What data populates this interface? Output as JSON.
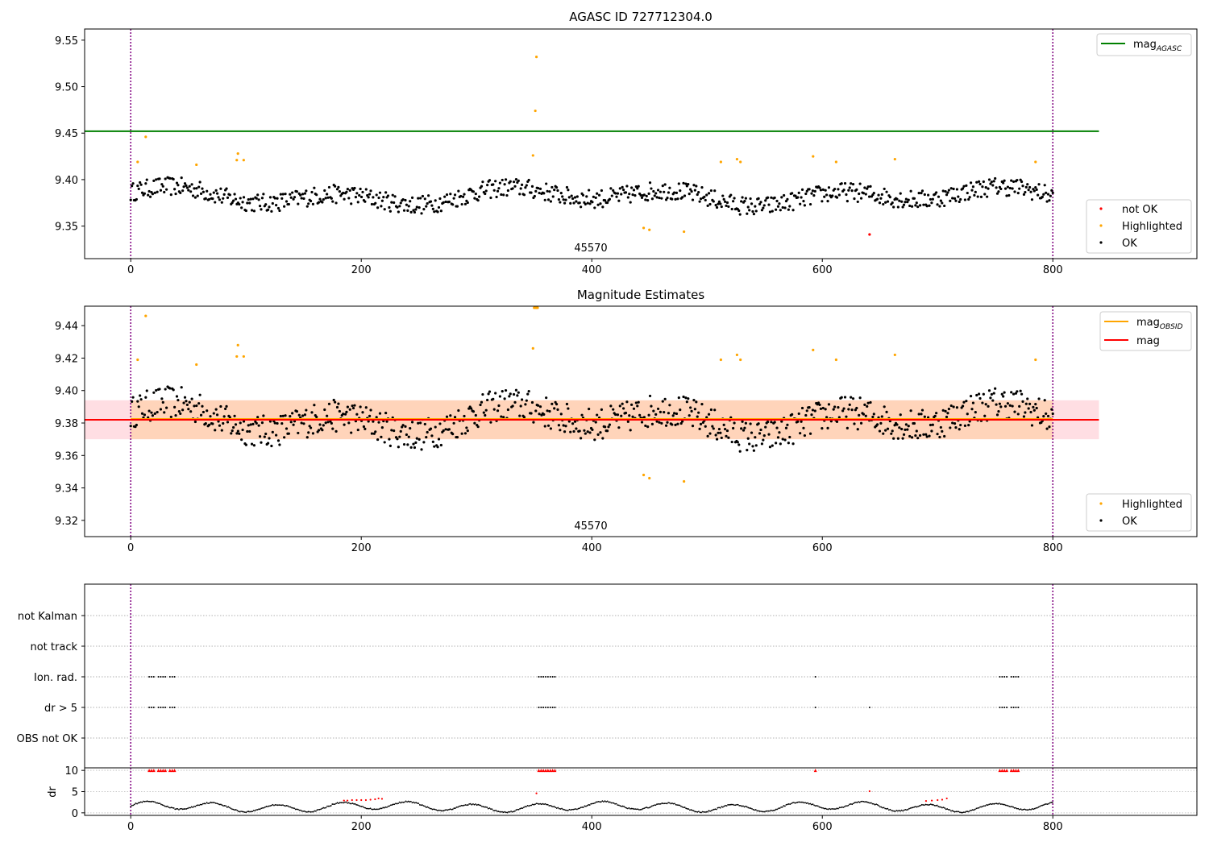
{
  "figure": {
    "title": "AGASC ID 727712304.0"
  },
  "chart_data": [
    {
      "type": "scatter",
      "title": "AGASC ID 727712304.0",
      "obsid_label": "45570",
      "xlim": [
        -40,
        925
      ],
      "ylim": [
        9.315,
        9.562
      ],
      "x_ticks": [
        0,
        200,
        400,
        600,
        800
      ],
      "y_ticks": [
        9.35,
        9.4,
        9.45,
        9.5,
        9.55
      ],
      "y_tick_labels": [
        "9.35",
        "9.40",
        "9.45",
        "9.50",
        "9.55"
      ],
      "vlines": [
        0,
        800
      ],
      "hlines": [
        {
          "name": "mag_AGASC",
          "y": 9.452,
          "x_range": [
            -40,
            840
          ],
          "color": "#008000"
        }
      ],
      "legend_top": {
        "position": "top-right",
        "entries": [
          {
            "label": "mag",
            "sub": "AGASC",
            "color": "#008000"
          }
        ]
      },
      "legend_bottom": {
        "position": "bottom-right",
        "entries": [
          {
            "label": "not OK",
            "color": "#ff0000"
          },
          {
            "label": "Highlighted",
            "color": "#ffa500"
          },
          {
            "label": "OK",
            "color": "#000000"
          }
        ]
      },
      "series": [
        {
          "name": "OK",
          "color": "#000000",
          "generated": {
            "n": 800,
            "x_range": [
              0,
              800
            ],
            "center": 9.382,
            "amp": 0.011,
            "noise": 0.01
          }
        },
        {
          "name": "Highlighted",
          "color": "#ffa500",
          "points": [
            [
              6,
              9.419
            ],
            [
              13,
              9.446
            ],
            [
              57,
              9.416
            ],
            [
              92,
              9.421
            ],
            [
              93,
              9.428
            ],
            [
              98,
              9.421
            ],
            [
              349,
              9.426
            ],
            [
              351,
              9.474
            ],
            [
              352,
              9.532
            ],
            [
              445,
              9.348
            ],
            [
              450,
              9.346
            ],
            [
              480,
              9.344
            ],
            [
              512,
              9.419
            ],
            [
              526,
              9.422
            ],
            [
              529,
              9.419
            ],
            [
              592,
              9.425
            ],
            [
              612,
              9.419
            ],
            [
              663,
              9.422
            ],
            [
              785,
              9.419
            ]
          ]
        },
        {
          "name": "not OK",
          "color": "#ff0000",
          "points": [
            [
              641,
              9.341
            ]
          ]
        }
      ]
    },
    {
      "type": "scatter",
      "title": "Magnitude Estimates",
      "obsid_label": "45570",
      "xlim": [
        -40,
        925
      ],
      "ylim": [
        9.31,
        9.452
      ],
      "x_ticks": [
        0,
        200,
        400,
        600,
        800
      ],
      "y_ticks": [
        9.32,
        9.34,
        9.36,
        9.38,
        9.4,
        9.42,
        9.44
      ],
      "y_tick_labels": [
        "9.32",
        "9.34",
        "9.36",
        "9.38",
        "9.40",
        "9.42",
        "9.44"
      ],
      "vlines": [
        0,
        800
      ],
      "bands": [
        {
          "name": "mag band",
          "y0": 9.37,
          "y1": 9.394,
          "x_range": [
            -40,
            840
          ],
          "color": "#ffb6c1",
          "opacity": 0.45
        },
        {
          "name": "mag_OBSID band",
          "y0": 9.37,
          "y1": 9.394,
          "x_range": [
            0,
            800
          ],
          "color": "#ffa500",
          "opacity": 0.18
        }
      ],
      "hlines": [
        {
          "name": "mag_OBSID",
          "y": 9.3825,
          "x_range": [
            0,
            800
          ],
          "color": "#ffa500"
        },
        {
          "name": "mag",
          "y": 9.382,
          "x_range": [
            -40,
            840
          ],
          "color": "#ff0000"
        }
      ],
      "legend_top": {
        "position": "top-right",
        "entries": [
          {
            "label": "mag",
            "sub": "OBSID",
            "color": "#ffa500"
          },
          {
            "label": "mag",
            "sub": "",
            "color": "#ff0000"
          }
        ]
      },
      "legend_bottom": {
        "position": "bottom-right",
        "entries": [
          {
            "label": "Highlighted",
            "color": "#ffa500"
          },
          {
            "label": "OK",
            "color": "#000000"
          }
        ]
      },
      "series": [
        {
          "name": "OK",
          "color": "#000000",
          "generated": {
            "n": 800,
            "x_range": [
              0,
              800
            ],
            "center": 9.382,
            "amp": 0.011,
            "noise": 0.01
          }
        },
        {
          "name": "Highlighted",
          "color": "#ffa500",
          "points": [
            [
              6,
              9.419
            ],
            [
              13,
              9.446
            ],
            [
              57,
              9.416
            ],
            [
              92,
              9.421
            ],
            [
              93,
              9.428
            ],
            [
              98,
              9.421
            ],
            [
              349,
              9.426
            ],
            [
              350,
              9.451
            ],
            [
              351,
              9.451
            ],
            [
              352,
              9.451
            ],
            [
              353,
              9.451
            ],
            [
              445,
              9.348
            ],
            [
              450,
              9.346
            ],
            [
              480,
              9.344
            ],
            [
              512,
              9.419
            ],
            [
              526,
              9.422
            ],
            [
              529,
              9.419
            ],
            [
              592,
              9.425
            ],
            [
              612,
              9.419
            ],
            [
              663,
              9.422
            ],
            [
              785,
              9.419
            ]
          ]
        }
      ]
    },
    {
      "type": "scatter",
      "title": "",
      "xlim": [
        -40,
        925
      ],
      "x_ticks": [
        0,
        200,
        400,
        600,
        800
      ],
      "vlines": [
        0,
        800
      ],
      "flag_rows": [
        "not Kalman",
        "not track",
        "Ion. rad.",
        "dr > 5",
        "OBS not OK"
      ],
      "flags": {
        "Ion. rad.": [
          16,
          18,
          20,
          24,
          26,
          28,
          30,
          34,
          36,
          38,
          354,
          356,
          358,
          360,
          362,
          364,
          366,
          368,
          594,
          754,
          756,
          758,
          760,
          764,
          766,
          768,
          770
        ],
        "dr > 5": [
          16,
          18,
          20,
          24,
          26,
          28,
          30,
          34,
          36,
          38,
          354,
          356,
          358,
          360,
          362,
          364,
          366,
          368,
          594,
          641,
          754,
          756,
          758,
          760,
          764,
          766,
          768,
          770
        ]
      },
      "dr": {
        "ylabel": "dr",
        "y_ticks": [
          0,
          5,
          10
        ],
        "y_tick_labels": [
          "0",
          "5",
          "10"
        ],
        "ylim": [
          -0.6,
          10.6
        ],
        "threshold": 5,
        "clipped_to_10": [
          16,
          18,
          20,
          24,
          26,
          28,
          30,
          34,
          36,
          38,
          354,
          356,
          358,
          360,
          362,
          364,
          366,
          368,
          594,
          754,
          756,
          758,
          760,
          764,
          766,
          768,
          770
        ],
        "red_points": [
          [
            185,
            2.9
          ],
          [
            188,
            2.9
          ],
          [
            192,
            3.0
          ],
          [
            196,
            3.0
          ],
          [
            200,
            3.0
          ],
          [
            204,
            3.0
          ],
          [
            208,
            3.1
          ],
          [
            212,
            3.2
          ],
          [
            215,
            3.4
          ],
          [
            218,
            3.3
          ],
          [
            352,
            4.6
          ],
          [
            641,
            5.1
          ],
          [
            690,
            2.8
          ],
          [
            695,
            2.9
          ],
          [
            700,
            3.0
          ],
          [
            704,
            3.1
          ],
          [
            708,
            3.4
          ]
        ]
      }
    }
  ]
}
